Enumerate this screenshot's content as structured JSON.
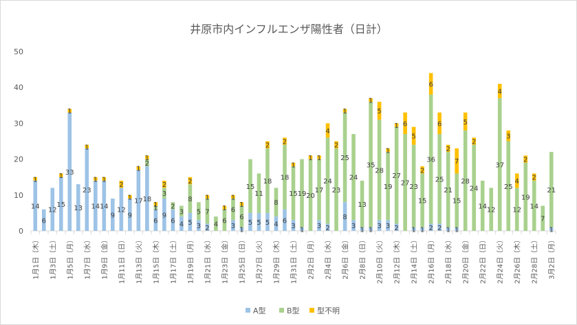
{
  "chart_data": {
    "type": "bar",
    "stacked": true,
    "title": "井原市内インフルエンザ陽性者（日計）",
    "ylim": [
      0,
      50
    ],
    "yticks": [
      "0",
      "10",
      "20",
      "30",
      "40",
      "50"
    ],
    "grid": false,
    "legend_position": "bottom",
    "categories": [
      "1月1日",
      "1月2日",
      "1月3日",
      "1月4日",
      "1月5日",
      "1月6日",
      "1月7日",
      "1月8日",
      "1月9日",
      "1月10日",
      "1月11日",
      "1月12日",
      "1月13日",
      "1月14日",
      "1月15日",
      "1月16日",
      "1月17日",
      "1月18日",
      "1月19日",
      "1月20日",
      "1月21日",
      "1月22日",
      "1月23日",
      "1月24日",
      "1月25日",
      "1月26日",
      "1月27日",
      "1月28日",
      "1月29日",
      "1月30日",
      "1月31日",
      "2月1日",
      "2月2日",
      "2月3日",
      "2月4日",
      "2月5日",
      "2月6日",
      "2月7日",
      "2月8日",
      "2月9日",
      "2月10日",
      "2月11日",
      "2月12日",
      "2月13日",
      "2月14日",
      "2月15日",
      "2月16日",
      "2月17日",
      "2月18日",
      "2月19日",
      "2月20日",
      "2月21日",
      "2月22日",
      "2月23日",
      "2月24日",
      "2月25日",
      "2月26日",
      "2月27日",
      "2月28日",
      "3月1日",
      "3月2日"
    ],
    "xtick_labels": [
      "1月1日（木）",
      "1月3日（土）",
      "1月5日（月）",
      "1月7日（水）",
      "1月9日（金）",
      "1月11日（日）",
      "1月13日（火）",
      "1月15日（木）",
      "1月17日（土）",
      "1月19日（月）",
      "1月21日（水）",
      "1月23日（金）",
      "1月25日（日）",
      "1月27日（火）",
      "1月29日（木）",
      "1月31日（土）",
      "2月2日（月）",
      "2月4日（水）",
      "2月6日（金）",
      "2月8日（日）",
      "2月10日（火）",
      "2月12日（木）",
      "2月14日（土）",
      "2月16日（月）",
      "2月18日（水）",
      "2月20日（金）",
      "2月22日（日）",
      "2月24日（火）",
      "2月26日（木）",
      "2月28日（土）",
      "3月2日（月）"
    ],
    "series": [
      {
        "name": "A型",
        "color": "#9dc3e6",
        "values": [
          14,
          6,
          12,
          15,
          33,
          13,
          23,
          14,
          14,
          9,
          12,
          9,
          17,
          18,
          6,
          9,
          6,
          4,
          5,
          3,
          2,
          0,
          0,
          3,
          1,
          5,
          5,
          5,
          4,
          6,
          3,
          1,
          0,
          3,
          2,
          0,
          8,
          3,
          1,
          1,
          3,
          3,
          2,
          0,
          1,
          1,
          2,
          2,
          1,
          1,
          0,
          0,
          0,
          0,
          0,
          0,
          0,
          0,
          0,
          0,
          1
        ],
        "labels": [
          "14",
          "6",
          "12",
          "15",
          "33",
          "13",
          "23",
          "14",
          "14",
          "9",
          "12",
          "9",
          "17",
          "18",
          "6",
          "9",
          "6",
          "4",
          "5",
          "3",
          "2",
          "",
          "",
          "3",
          "1",
          "5",
          "5",
          "5",
          "4",
          "6",
          "3",
          "1",
          "",
          "3",
          "2",
          "",
          "8",
          "3",
          "1",
          "1",
          "3",
          "3",
          "2",
          "",
          "1",
          "1",
          "2",
          "2",
          "1",
          "1",
          "",
          "",
          "",
          "",
          "",
          "",
          "",
          "",
          "",
          "",
          "1"
        ]
      },
      {
        "name": "B型",
        "color": "#a9d18e",
        "values": [
          0,
          0,
          0,
          0,
          0,
          0,
          0,
          0,
          0,
          0,
          0,
          0,
          0,
          2,
          1,
          3,
          2,
          3,
          8,
          5,
          7,
          4,
          6,
          6,
          6,
          15,
          11,
          18,
          8,
          18,
          15,
          19,
          20,
          17,
          24,
          23,
          25,
          24,
          13,
          35,
          28,
          19,
          27,
          27,
          23,
          15,
          36,
          25,
          21,
          15,
          28,
          24,
          14,
          12,
          37,
          25,
          12,
          19,
          14,
          7,
          21
        ],
        "labels": [
          "",
          "",
          "",
          "",
          "",
          "",
          "",
          "",
          "",
          "",
          "",
          "",
          "",
          "2",
          "1",
          "3",
          "2",
          "3",
          "8",
          "5",
          "7",
          "4",
          "6",
          "6",
          "6",
          "15",
          "11",
          "18",
          "8",
          "18",
          "15",
          "19",
          "20",
          "17",
          "24",
          "23",
          "25",
          "24",
          "13",
          "35",
          "28",
          "19",
          "27",
          "27",
          "23",
          "15",
          "36",
          "25",
          "21",
          "15",
          "28",
          "24",
          "14",
          "12",
          "37",
          "25",
          "12",
          "19",
          "14",
          "7",
          "21"
        ]
      },
      {
        "name": "型不明",
        "color": "#ffc000",
        "values": [
          1,
          0,
          0,
          1,
          1,
          0,
          1,
          1,
          1,
          0,
          2,
          1,
          1,
          1,
          1,
          2,
          0,
          0,
          2,
          0,
          1,
          0,
          1,
          1,
          1,
          0,
          0,
          2,
          0,
          2,
          1,
          0,
          1,
          1,
          4,
          2,
          1,
          0,
          0,
          1,
          5,
          1,
          1,
          6,
          5,
          2,
          6,
          6,
          2,
          7,
          5,
          2,
          0,
          0,
          4,
          3,
          4,
          2,
          2,
          0,
          0
        ],
        "labels": [
          "1",
          "",
          "",
          "1",
          "1",
          "",
          "1",
          "1",
          "1",
          "",
          "2",
          "1",
          "1",
          "1",
          "1",
          "2",
          "",
          "",
          "2",
          "",
          "1",
          "",
          "1",
          "1",
          "1",
          "",
          "",
          "2",
          "",
          "2",
          "1",
          "",
          "1",
          "1",
          "4",
          "2",
          "1",
          "",
          "",
          "1",
          "5",
          "1",
          "1",
          "6",
          "5",
          "2",
          "6",
          "6",
          "2",
          "7",
          "5",
          "2",
          "",
          "",
          "4",
          "3",
          "4",
          "2",
          "2",
          "",
          ""
        ]
      }
    ]
  }
}
